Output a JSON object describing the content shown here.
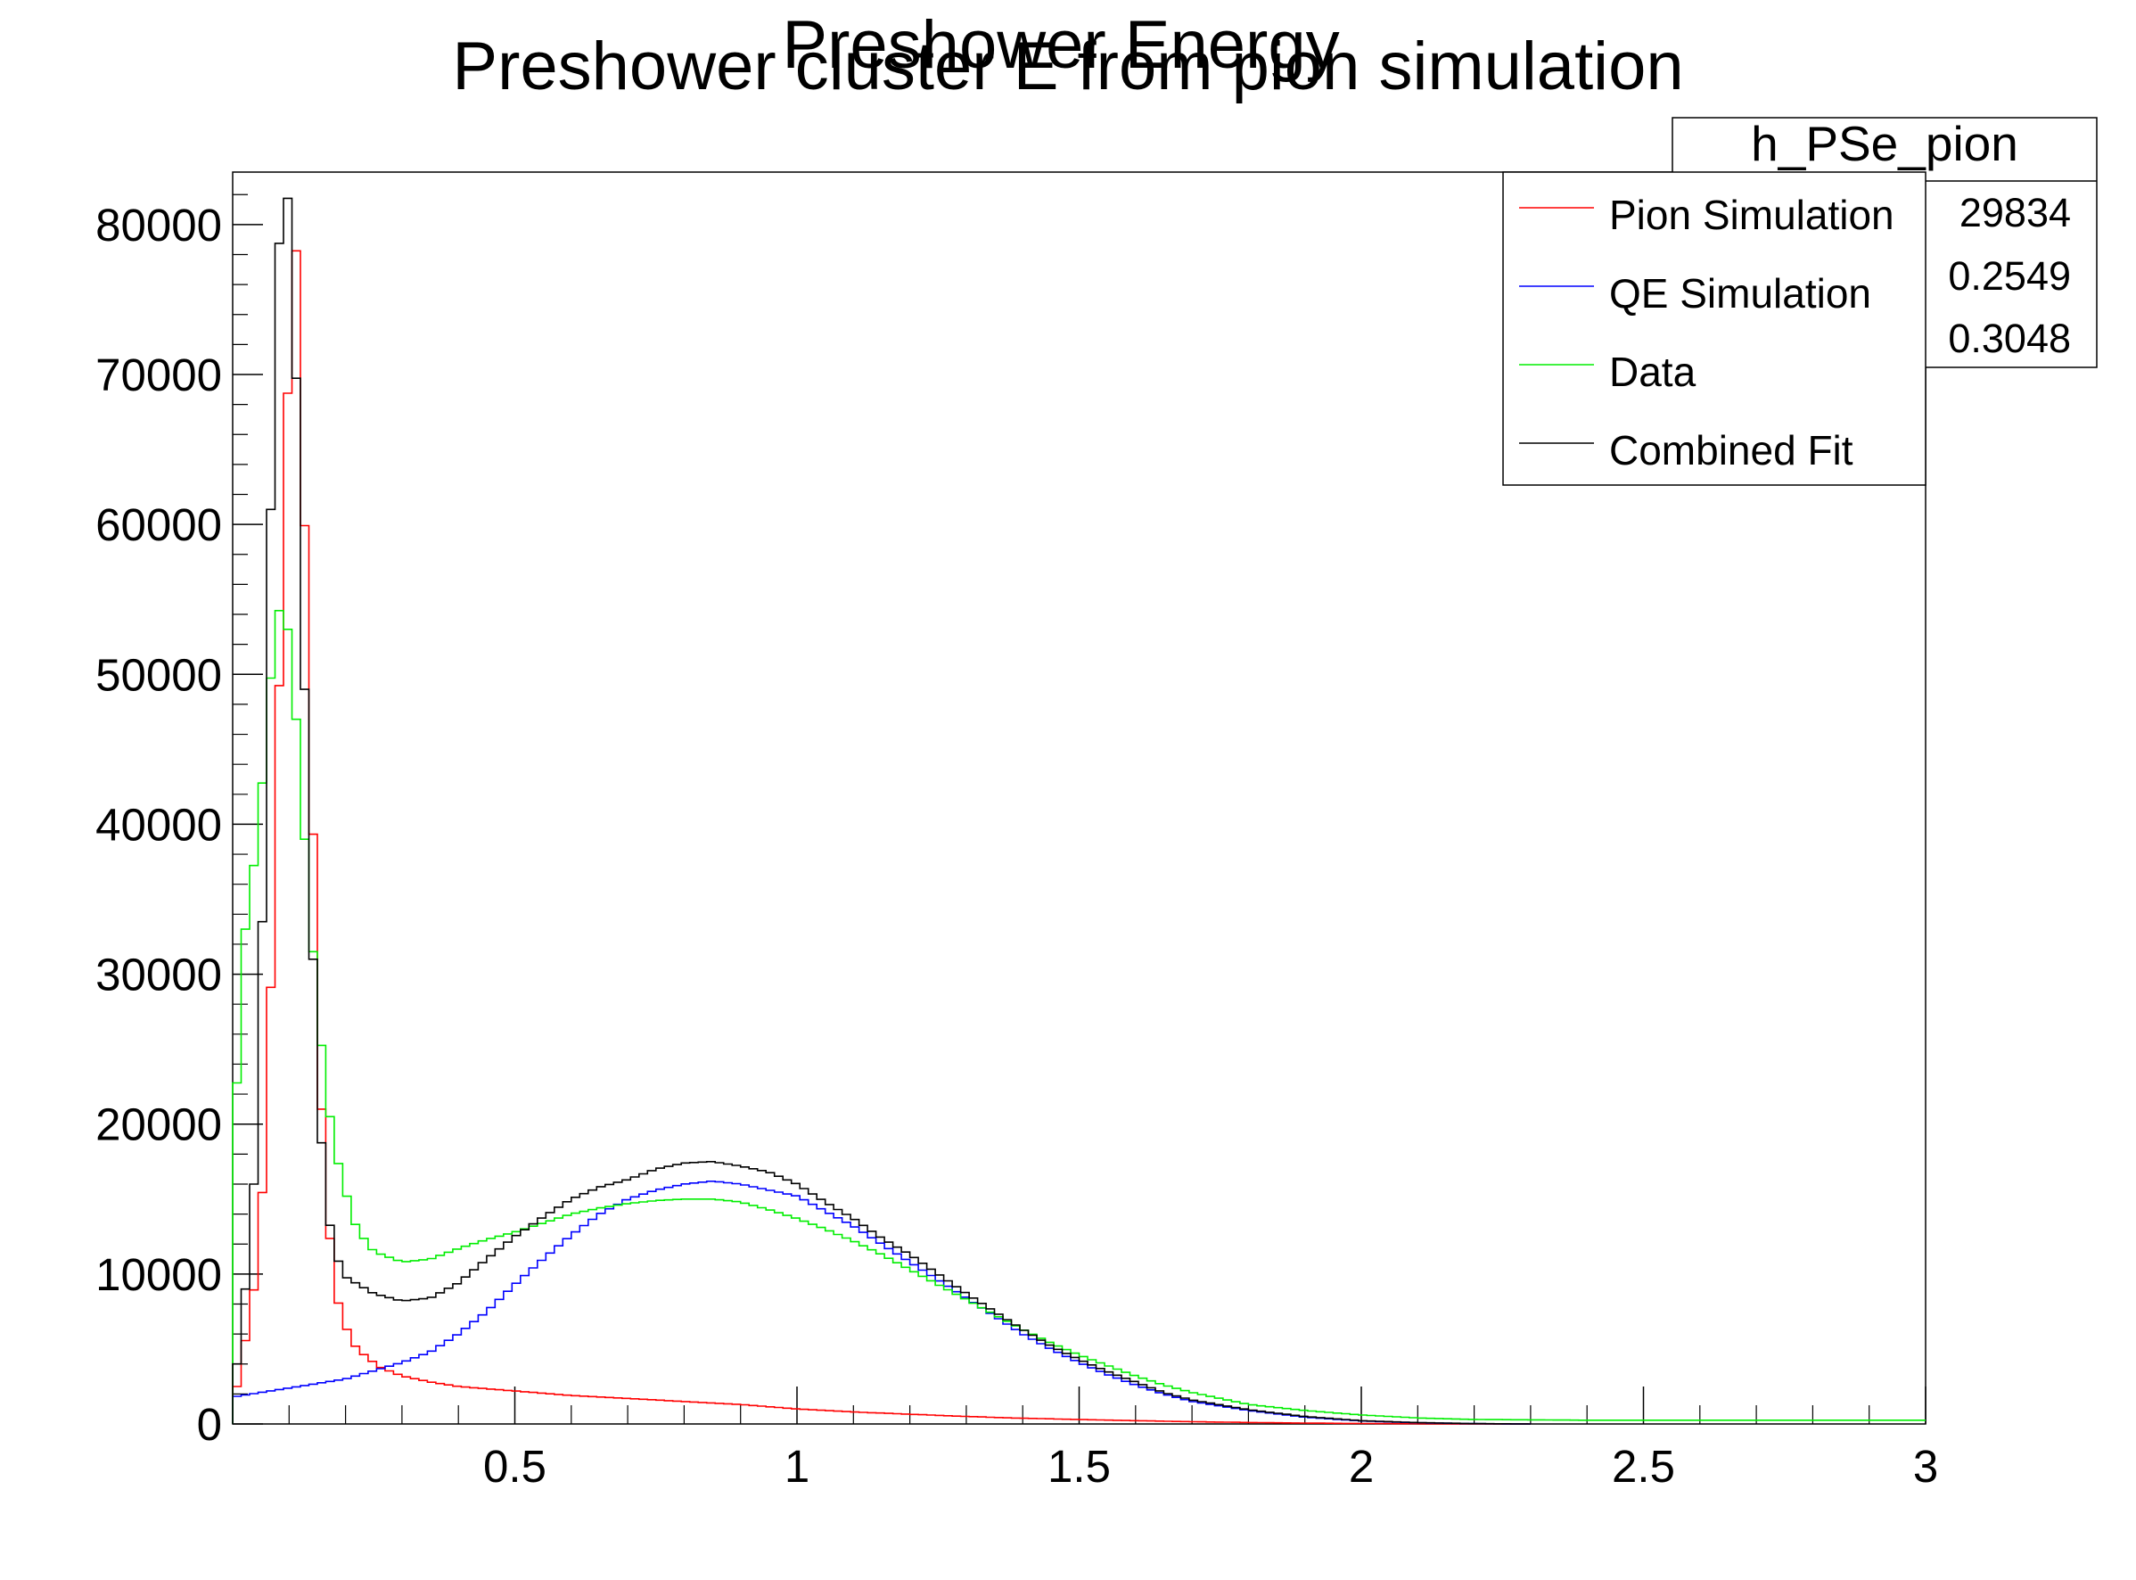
{
  "chart_data": {
    "type": "line",
    "title": "Preshower cluster E from pion simulation",
    "overlay_title": "Preshower Energy",
    "xlabel": "",
    "ylabel": "",
    "xlim": [
      0,
      3
    ],
    "ylim": [
      0,
      83500
    ],
    "x_tick_labels": [
      "0.5",
      "1",
      "1.5",
      "2",
      "2.5",
      "3"
    ],
    "x_ticks": [
      0.5,
      1,
      1.5,
      2,
      2.5,
      3
    ],
    "y_tick_labels": [
      "0",
      "10000",
      "20000",
      "30000",
      "40000",
      "50000",
      "60000",
      "70000",
      "80000"
    ],
    "y_ticks": [
      0,
      10000,
      20000,
      30000,
      40000,
      50000,
      60000,
      70000,
      80000
    ],
    "grid": false,
    "legend_position": "top-right",
    "series": [
      {
        "name": "Pion Simulation",
        "color": "#ff0000",
        "points": [
          [
            0,
            1000
          ],
          [
            0.02,
            5000
          ],
          [
            0.04,
            9500
          ],
          [
            0.06,
            19000
          ],
          [
            0.08,
            46000
          ],
          [
            0.1,
            72000
          ],
          [
            0.115,
            79500
          ],
          [
            0.13,
            56000
          ],
          [
            0.145,
            36000
          ],
          [
            0.16,
            18000
          ],
          [
            0.18,
            9000
          ],
          [
            0.2,
            6500
          ],
          [
            0.22,
            5000
          ],
          [
            0.26,
            3800
          ],
          [
            0.3,
            3200
          ],
          [
            0.35,
            2800
          ],
          [
            0.4,
            2500
          ],
          [
            0.5,
            2200
          ],
          [
            0.6,
            1900
          ],
          [
            0.7,
            1700
          ],
          [
            0.8,
            1500
          ],
          [
            0.9,
            1300
          ],
          [
            1.0,
            1000
          ],
          [
            1.1,
            800
          ],
          [
            1.2,
            650
          ],
          [
            1.3,
            500
          ],
          [
            1.4,
            380
          ],
          [
            1.5,
            300
          ],
          [
            1.6,
            220
          ],
          [
            1.7,
            150
          ],
          [
            1.8,
            100
          ],
          [
            1.9,
            60
          ],
          [
            2.0,
            30
          ],
          [
            2.1,
            15
          ],
          [
            2.2,
            5
          ],
          [
            2.3,
            0
          ]
        ]
      },
      {
        "name": "QE Simulation",
        "color": "#0000ff",
        "points": [
          [
            0,
            1800
          ],
          [
            0.1,
            2400
          ],
          [
            0.2,
            3000
          ],
          [
            0.3,
            4100
          ],
          [
            0.35,
            4800
          ],
          [
            0.4,
            6000
          ],
          [
            0.45,
            7500
          ],
          [
            0.5,
            9300
          ],
          [
            0.55,
            11000
          ],
          [
            0.6,
            12600
          ],
          [
            0.65,
            14000
          ],
          [
            0.7,
            15000
          ],
          [
            0.75,
            15600
          ],
          [
            0.8,
            16000
          ],
          [
            0.85,
            16200
          ],
          [
            0.9,
            16000
          ],
          [
            0.95,
            15600
          ],
          [
            1.0,
            15200
          ],
          [
            1.05,
            14200
          ],
          [
            1.1,
            13200
          ],
          [
            1.15,
            12000
          ],
          [
            1.2,
            10800
          ],
          [
            1.25,
            9600
          ],
          [
            1.3,
            8400
          ],
          [
            1.35,
            7200
          ],
          [
            1.4,
            6000
          ],
          [
            1.45,
            5000
          ],
          [
            1.5,
            4100
          ],
          [
            1.55,
            3300
          ],
          [
            1.6,
            2600
          ],
          [
            1.65,
            2000
          ],
          [
            1.7,
            1500
          ],
          [
            1.8,
            900
          ],
          [
            1.9,
            450
          ],
          [
            2.0,
            200
          ],
          [
            2.1,
            80
          ],
          [
            2.2,
            20
          ],
          [
            2.3,
            0
          ]
        ]
      },
      {
        "name": "Data",
        "color": "#00ee00",
        "points": [
          [
            0,
            14500
          ],
          [
            0.015,
            31000
          ],
          [
            0.03,
            35000
          ],
          [
            0.045,
            39500
          ],
          [
            0.06,
            46000
          ],
          [
            0.075,
            53500
          ],
          [
            0.09,
            55000
          ],
          [
            0.105,
            51000
          ],
          [
            0.12,
            43000
          ],
          [
            0.135,
            35000
          ],
          [
            0.15,
            28000
          ],
          [
            0.165,
            22500
          ],
          [
            0.18,
            18500
          ],
          [
            0.2,
            15500
          ],
          [
            0.22,
            13000
          ],
          [
            0.25,
            11500
          ],
          [
            0.3,
            10800
          ],
          [
            0.35,
            11000
          ],
          [
            0.4,
            11700
          ],
          [
            0.45,
            12300
          ],
          [
            0.5,
            12800
          ],
          [
            0.55,
            13400
          ],
          [
            0.6,
            14000
          ],
          [
            0.65,
            14400
          ],
          [
            0.7,
            14700
          ],
          [
            0.75,
            14900
          ],
          [
            0.8,
            15000
          ],
          [
            0.85,
            15000
          ],
          [
            0.9,
            14800
          ],
          [
            0.95,
            14300
          ],
          [
            1.0,
            13700
          ],
          [
            1.05,
            13000
          ],
          [
            1.1,
            12200
          ],
          [
            1.15,
            11300
          ],
          [
            1.2,
            10300
          ],
          [
            1.25,
            9300
          ],
          [
            1.3,
            8300
          ],
          [
            1.35,
            7300
          ],
          [
            1.4,
            6300
          ],
          [
            1.45,
            5400
          ],
          [
            1.5,
            4600
          ],
          [
            1.55,
            3900
          ],
          [
            1.6,
            3200
          ],
          [
            1.65,
            2600
          ],
          [
            1.7,
            2100
          ],
          [
            1.75,
            1700
          ],
          [
            1.8,
            1300
          ],
          [
            1.9,
            900
          ],
          [
            2.0,
            600
          ],
          [
            2.1,
            400
          ],
          [
            2.2,
            300
          ],
          [
            2.4,
            250
          ],
          [
            2.6,
            250
          ],
          [
            2.8,
            250
          ],
          [
            3.0,
            250
          ]
        ]
      },
      {
        "name": "Combined Fit",
        "color": "#000000",
        "points": [
          [
            0,
            2000
          ],
          [
            0.015,
            6000
          ],
          [
            0.03,
            12000
          ],
          [
            0.045,
            20000
          ],
          [
            0.06,
            47000
          ],
          [
            0.075,
            75000
          ],
          [
            0.09,
            82500
          ],
          [
            0.105,
            81000
          ],
          [
            0.12,
            58500
          ],
          [
            0.135,
            39500
          ],
          [
            0.15,
            22500
          ],
          [
            0.165,
            15000
          ],
          [
            0.18,
            11500
          ],
          [
            0.2,
            9800
          ],
          [
            0.25,
            8700
          ],
          [
            0.3,
            8200
          ],
          [
            0.35,
            8400
          ],
          [
            0.4,
            9400
          ],
          [
            0.45,
            11000
          ],
          [
            0.5,
            12500
          ],
          [
            0.55,
            13800
          ],
          [
            0.6,
            15000
          ],
          [
            0.65,
            15800
          ],
          [
            0.7,
            16300
          ],
          [
            0.75,
            17000
          ],
          [
            0.8,
            17400
          ],
          [
            0.85,
            17500
          ],
          [
            0.9,
            17200
          ],
          [
            0.95,
            16800
          ],
          [
            1.0,
            16000
          ],
          [
            1.05,
            14800
          ],
          [
            1.1,
            13700
          ],
          [
            1.15,
            12400
          ],
          [
            1.2,
            11300
          ],
          [
            1.25,
            10000
          ],
          [
            1.3,
            8700
          ],
          [
            1.35,
            7500
          ],
          [
            1.4,
            6300
          ],
          [
            1.45,
            5200
          ],
          [
            1.5,
            4300
          ],
          [
            1.55,
            3500
          ],
          [
            1.6,
            2800
          ],
          [
            1.65,
            2100
          ],
          [
            1.7,
            1600
          ],
          [
            1.8,
            950
          ],
          [
            1.9,
            500
          ],
          [
            2.0,
            220
          ],
          [
            2.1,
            90
          ],
          [
            2.2,
            25
          ],
          [
            2.3,
            0
          ]
        ]
      }
    ]
  },
  "stats_box": {
    "title": "h_PSe_pion",
    "values": [
      "29834",
      "0.2549",
      "0.3048"
    ]
  },
  "legend": {
    "entries": [
      {
        "label": "Pion Simulation",
        "color": "#ff0000"
      },
      {
        "label": "QE Simulation",
        "color": "#0000ff"
      },
      {
        "label": "Data",
        "color": "#00ee00"
      },
      {
        "label": "Combined Fit",
        "color": "#000000"
      }
    ]
  }
}
